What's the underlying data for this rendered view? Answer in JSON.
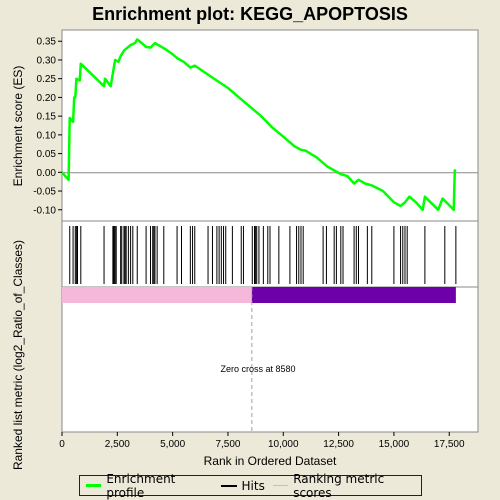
{
  "chart_data": {
    "type": "line",
    "title": "Enrichment plot: KEGG_APOPTOSIS",
    "xlabel": "Rank in Ordered Dataset",
    "ylabel_top": "Enrichment score (ES)",
    "ylabel_bottom": "Ranked list metric (log2_Ratio_of_Classes)",
    "xlim": [
      0,
      18800
    ],
    "ylim": [
      -0.13,
      0.38
    ],
    "x_ticks": [
      0,
      2500,
      5000,
      7500,
      10000,
      12500,
      15000,
      17500
    ],
    "x_tick_labels": [
      "0",
      "2,500",
      "5,000",
      "7,500",
      "10,000",
      "12,500",
      "15,000",
      "17,500"
    ],
    "y_ticks": [
      -0.1,
      -0.05,
      0.0,
      0.05,
      0.1,
      0.15,
      0.2,
      0.25,
      0.3,
      0.35
    ],
    "y_tick_labels": [
      "-0.10",
      "-0.05",
      "0.00",
      "0.05",
      "0.10",
      "0.15",
      "0.20",
      "0.25",
      "0.30",
      "0.35"
    ],
    "zero_cross": 8580,
    "zero_cross_label": "Zero cross at 8580",
    "series": [
      {
        "name": "Enrichment profile",
        "color": "#00FF00",
        "points": [
          [
            0,
            0.0
          ],
          [
            300,
            -0.02
          ],
          [
            350,
            0.145
          ],
          [
            500,
            0.135
          ],
          [
            550,
            0.2
          ],
          [
            600,
            0.2
          ],
          [
            650,
            0.25
          ],
          [
            800,
            0.245
          ],
          [
            850,
            0.29
          ],
          [
            1900,
            0.23
          ],
          [
            1950,
            0.25
          ],
          [
            2200,
            0.23
          ],
          [
            2300,
            0.265
          ],
          [
            2400,
            0.3
          ],
          [
            2550,
            0.295
          ],
          [
            2650,
            0.31
          ],
          [
            2800,
            0.325
          ],
          [
            2900,
            0.33
          ],
          [
            3000,
            0.335
          ],
          [
            3100,
            0.34
          ],
          [
            3300,
            0.345
          ],
          [
            3400,
            0.355
          ],
          [
            3600,
            0.345
          ],
          [
            3800,
            0.335
          ],
          [
            4000,
            0.333
          ],
          [
            4200,
            0.345
          ],
          [
            4500,
            0.335
          ],
          [
            4700,
            0.328
          ],
          [
            5000,
            0.315
          ],
          [
            5200,
            0.305
          ],
          [
            5500,
            0.295
          ],
          [
            5800,
            0.28
          ],
          [
            6000,
            0.285
          ],
          [
            6500,
            0.265
          ],
          [
            7000,
            0.245
          ],
          [
            7500,
            0.225
          ],
          [
            8000,
            0.2
          ],
          [
            8500,
            0.175
          ],
          [
            9000,
            0.15
          ],
          [
            9500,
            0.12
          ],
          [
            10000,
            0.095
          ],
          [
            10500,
            0.07
          ],
          [
            10800,
            0.06
          ],
          [
            11000,
            0.058
          ],
          [
            11500,
            0.04
          ],
          [
            12000,
            0.015
          ],
          [
            12300,
            0.005
          ],
          [
            12600,
            -0.005
          ],
          [
            12900,
            -0.01
          ],
          [
            13200,
            -0.03
          ],
          [
            13400,
            -0.02
          ],
          [
            13700,
            -0.03
          ],
          [
            14000,
            -0.035
          ],
          [
            14500,
            -0.05
          ],
          [
            15000,
            -0.08
          ],
          [
            15300,
            -0.09
          ],
          [
            15500,
            -0.08
          ],
          [
            15700,
            -0.065
          ],
          [
            16000,
            -0.08
          ],
          [
            16300,
            -0.1
          ],
          [
            16400,
            -0.065
          ],
          [
            17000,
            -0.1
          ],
          [
            17200,
            -0.07
          ],
          [
            17700,
            -0.1
          ],
          [
            17750,
            0.005
          ],
          [
            17800,
            0.003
          ]
        ]
      }
    ],
    "hits": [
      350,
      500,
      600,
      650,
      700,
      850,
      1900,
      2300,
      2330,
      2360,
      2400,
      2450,
      2650,
      2700,
      2800,
      2850,
      2900,
      3000,
      3100,
      3200,
      3400,
      3800,
      4000,
      4100,
      4150,
      4200,
      4300,
      4600,
      5200,
      5400,
      5800,
      5900,
      6000,
      6600,
      6800,
      7000,
      7100,
      7200,
      7300,
      7400,
      7700,
      8100,
      8200,
      8600,
      8700,
      8750,
      8800,
      8900,
      9100,
      9300,
      9400,
      9800,
      10300,
      10600,
      10700,
      10800,
      10900,
      11800,
      11950,
      12300,
      12400,
      12600,
      12700,
      13200,
      13300,
      13400,
      13800,
      14000,
      15000,
      15300,
      15400,
      15500,
      15600,
      16400,
      17300,
      17800
    ],
    "colors": {
      "positive_band": "#F6B8DA",
      "negative_band": "#6E00AA",
      "hits": "#000000",
      "zero_cross_line": "#A0A0A0"
    }
  },
  "legend": {
    "items": [
      {
        "label": "Enrichment profile",
        "color": "#00FF00"
      },
      {
        "label": "Hits",
        "color": "#000000"
      },
      {
        "label": "Ranking metric scores",
        "color": "#C0C0C0"
      }
    ]
  }
}
